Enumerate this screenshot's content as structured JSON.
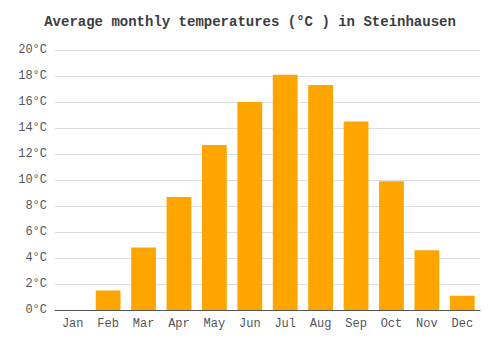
{
  "chart_data": {
    "type": "bar",
    "title": "Average monthly temperatures (°C ) in Steinhausen",
    "categories": [
      "Jan",
      "Feb",
      "Mar",
      "Apr",
      "May",
      "Jun",
      "Jul",
      "Aug",
      "Sep",
      "Oct",
      "Nov",
      "Dec"
    ],
    "values": [
      0,
      1.5,
      4.8,
      8.7,
      12.7,
      16.0,
      18.1,
      17.3,
      14.5,
      9.9,
      4.6,
      1.1
    ],
    "color": "#FFA500",
    "ylim": [
      0,
      20
    ],
    "yticks": [
      {
        "value": 0,
        "label": "0°C"
      },
      {
        "value": 2,
        "label": "2°C"
      },
      {
        "value": 4,
        "label": "4°C"
      },
      {
        "value": 6,
        "label": "6°C"
      },
      {
        "value": 8,
        "label": "8°C"
      },
      {
        "value": 10,
        "label": "10°C"
      },
      {
        "value": 12,
        "label": "12°C"
      },
      {
        "value": 14,
        "label": "14°C"
      },
      {
        "value": 16,
        "label": "16°C"
      },
      {
        "value": 18,
        "label": "18°C"
      },
      {
        "value": 20,
        "label": "20°C"
      }
    ],
    "grid": true
  }
}
